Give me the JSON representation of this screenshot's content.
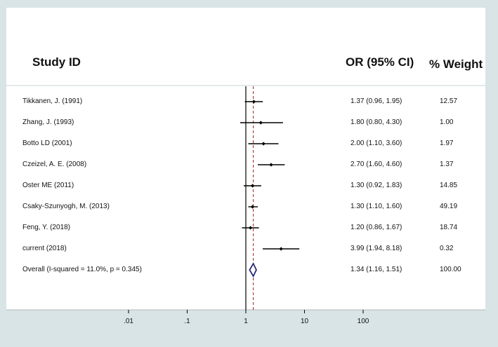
{
  "chart_data": {
    "type": "forest",
    "headers": {
      "study": "Study ID",
      "ci": "OR (95% CI)",
      "weight": "% Weight"
    },
    "x_scale": "log",
    "x_ticks": [
      {
        "value": 0.01,
        "label": ".01"
      },
      {
        "value": 0.1,
        "label": ".1"
      },
      {
        "value": 1,
        "label": "1"
      },
      {
        "value": 10,
        "label": "10"
      },
      {
        "value": 100,
        "label": "100"
      }
    ],
    "reference_line": 1,
    "pooled_line": 1.34,
    "studies": [
      {
        "label": "Tikkanen, J. (1991)",
        "or": 1.37,
        "lo": 0.96,
        "hi": 1.95,
        "ci_text": "1.37 (0.96, 1.95)",
        "weight": "12.57"
      },
      {
        "label": "Zhang, J. (1993)",
        "or": 1.8,
        "lo": 0.8,
        "hi": 4.3,
        "ci_text": "1.80 (0.80, 4.30)",
        "weight": "1.00"
      },
      {
        "label": "Botto LD (2001)",
        "or": 2.0,
        "lo": 1.1,
        "hi": 3.6,
        "ci_text": "2.00 (1.10, 3.60)",
        "weight": "1.97"
      },
      {
        "label": "Czeizel, A. E. (2008)",
        "or": 2.7,
        "lo": 1.6,
        "hi": 4.6,
        "ci_text": "2.70 (1.60, 4.60)",
        "weight": "1.37"
      },
      {
        "label": "Oster ME (2011)",
        "or": 1.3,
        "lo": 0.92,
        "hi": 1.83,
        "ci_text": "1.30 (0.92, 1.83)",
        "weight": "14.85"
      },
      {
        "label": "Csaky-Szunyogh, M. (2013)",
        "or": 1.3,
        "lo": 1.1,
        "hi": 1.6,
        "ci_text": "1.30 (1.10, 1.60)",
        "weight": "49.19"
      },
      {
        "label": "Feng, Y. (2018)",
        "or": 1.2,
        "lo": 0.86,
        "hi": 1.67,
        "ci_text": "1.20 (0.86, 1.67)",
        "weight": "18.74"
      },
      {
        "label": "current (2018)",
        "or": 3.99,
        "lo": 1.94,
        "hi": 8.18,
        "ci_text": "3.99 (1.94, 8.18)",
        "weight": "0.32"
      }
    ],
    "overall": {
      "label": "Overall  (I-squared = 11.0%, p = 0.345)",
      "or": 1.34,
      "lo": 1.16,
      "hi": 1.51,
      "ci_text": "1.34 (1.16, 1.51)",
      "weight": "100.00"
    },
    "colors": {
      "diamond": "#2a2a7a",
      "pooled_line": "#a02020",
      "marker": "#000000",
      "background": "#d8e4e6",
      "panel": "#ffffff"
    }
  }
}
